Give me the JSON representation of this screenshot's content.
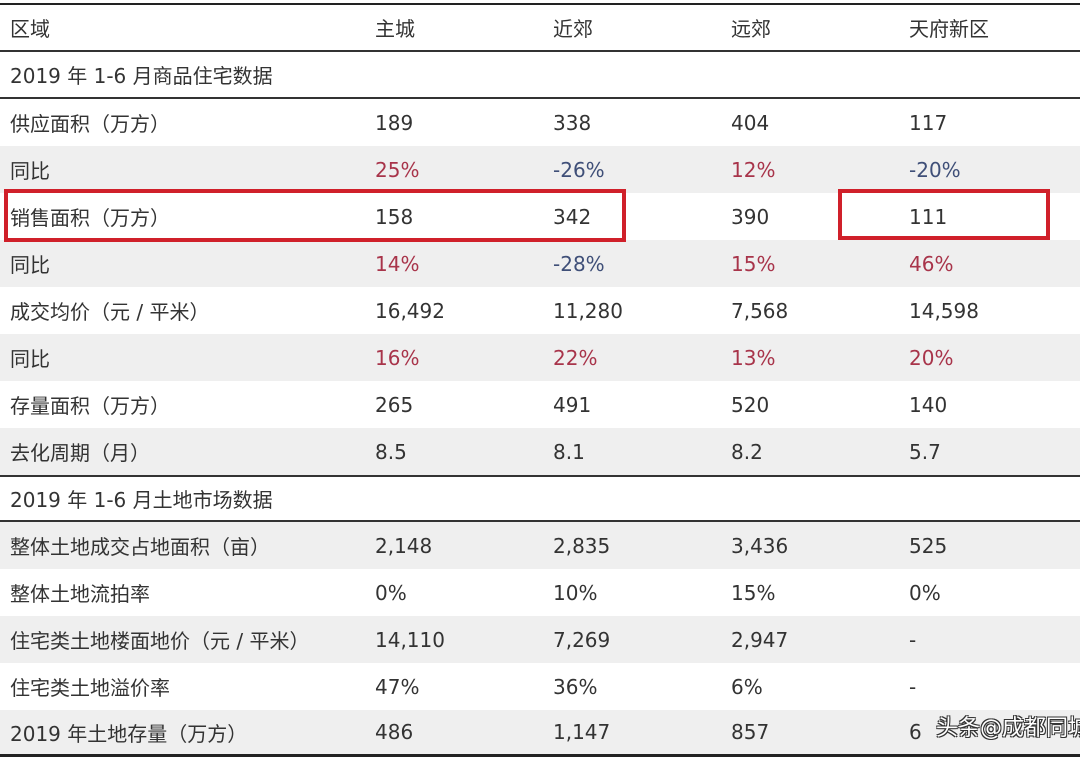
{
  "header": [
    "区域",
    "主城",
    "近郊",
    "远郊",
    "天府新区"
  ],
  "sections": [
    {
      "title": "2019 年 1-6 月商品住宅数据",
      "rows": [
        {
          "label": "供应面积（万方）",
          "values": [
            "189",
            "338",
            "404",
            "117"
          ],
          "kind": "num"
        },
        {
          "label": "同比",
          "values": [
            "25%",
            "-26%",
            "12%",
            "-20%"
          ],
          "kind": "pct"
        },
        {
          "label": "销售面积（万方）",
          "values": [
            "158",
            "342",
            "390",
            "111"
          ],
          "kind": "num"
        },
        {
          "label": "同比",
          "values": [
            "14%",
            "-28%",
            "15%",
            "46%"
          ],
          "kind": "pct"
        },
        {
          "label": "成交均价（元 / 平米）",
          "values": [
            "16,492",
            "11,280",
            "7,568",
            "14,598"
          ],
          "kind": "num"
        },
        {
          "label": "同比",
          "values": [
            "16%",
            "22%",
            "13%",
            "20%"
          ],
          "kind": "pct"
        },
        {
          "label": "存量面积（万方）",
          "values": [
            "265",
            "491",
            "520",
            "140"
          ],
          "kind": "num"
        },
        {
          "label": "去化周期（月）",
          "values": [
            "8.5",
            "8.1",
            "8.2",
            "5.7"
          ],
          "kind": "num"
        }
      ]
    },
    {
      "title": "2019 年 1-6 月土地市场数据",
      "rows": [
        {
          "label": "整体土地成交占地面积（亩）",
          "values": [
            "2,148",
            "2,835",
            "3,436",
            "525"
          ],
          "kind": "num"
        },
        {
          "label": "整体土地流拍率",
          "values": [
            "0%",
            "10%",
            "15%",
            "0%"
          ],
          "kind": "num"
        },
        {
          "label": "住宅类土地楼面地价（元 / 平米）",
          "values": [
            "14,110",
            "7,269",
            "2,947",
            "-"
          ],
          "kind": "num"
        },
        {
          "label": "住宅类土地溢价率",
          "values": [
            "47%",
            "36%",
            "6%",
            "-"
          ],
          "kind": "num"
        },
        {
          "label": "2019 年土地存量（万方）",
          "values": [
            "486",
            "1,147",
            "857",
            "6"
          ],
          "kind": "num"
        }
      ]
    }
  ],
  "colors": {
    "positive": "#a8344a",
    "negative": "#3f4f78",
    "highlight_box": "#d0202a"
  },
  "highlight": "销售面积（万方）",
  "watermark": "头条@成都同城"
}
